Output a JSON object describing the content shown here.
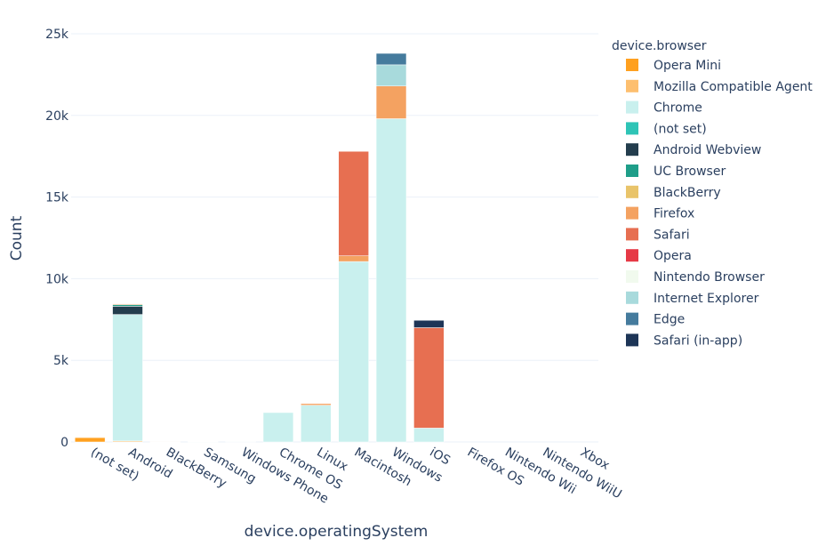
{
  "chart_data": {
    "type": "bar",
    "barmode": "stack",
    "title": "",
    "xlabel": "device.operatingSystem",
    "ylabel": "Count",
    "legend_title": "device.browser",
    "legend_position": "right",
    "grid": true,
    "ylim": [
      0,
      25000
    ],
    "yticks": [
      0,
      5000,
      10000,
      15000,
      20000,
      25000
    ],
    "ytick_labels": [
      "0",
      "5k",
      "10k",
      "15k",
      "20k",
      "25k"
    ],
    "categories": [
      "(not set)",
      "Android",
      "BlackBerry",
      "Samsung",
      "Windows Phone",
      "Chrome OS",
      "Linux",
      "Macintosh",
      "Windows",
      "iOS",
      "Firefox OS",
      "Nintendo Wii",
      "Nintendo WiiU",
      "Xbox"
    ],
    "series": [
      {
        "name": "Opera Mini",
        "color": "#FFA01F",
        "values": [
          270,
          0,
          0,
          0,
          0,
          0,
          0,
          0,
          0,
          0,
          0,
          0,
          0,
          0
        ]
      },
      {
        "name": "Mozilla Compatible Agent",
        "color": "#FDBF6F",
        "values": [
          30,
          60,
          10,
          0,
          0,
          0,
          0,
          0,
          0,
          0,
          0,
          0,
          0,
          0
        ]
      },
      {
        "name": "Chrome",
        "color": "#C9F0EE",
        "values": [
          0,
          7750,
          0,
          20,
          30,
          1800,
          2250,
          11050,
          19800,
          850,
          0,
          0,
          0,
          0
        ]
      },
      {
        "name": "(not set)",
        "color": "#2EC4B6",
        "values": [
          0,
          0,
          0,
          0,
          0,
          0,
          0,
          0,
          0,
          0,
          0,
          0,
          0,
          0
        ]
      },
      {
        "name": "Android Webview",
        "color": "#233D4D",
        "values": [
          0,
          500,
          0,
          0,
          0,
          0,
          0,
          0,
          0,
          0,
          0,
          0,
          0,
          0
        ]
      },
      {
        "name": "UC Browser",
        "color": "#1F9E89",
        "values": [
          0,
          100,
          0,
          0,
          0,
          0,
          0,
          0,
          0,
          0,
          0,
          0,
          0,
          0
        ]
      },
      {
        "name": "BlackBerry",
        "color": "#E9C46A",
        "values": [
          0,
          0,
          0,
          0,
          0,
          0,
          0,
          0,
          0,
          0,
          0,
          0,
          0,
          0
        ]
      },
      {
        "name": "Firefox",
        "color": "#F4A261",
        "values": [
          0,
          50,
          0,
          0,
          0,
          0,
          100,
          350,
          2000,
          0,
          0,
          0,
          0,
          0
        ]
      },
      {
        "name": "Safari",
        "color": "#E76F51",
        "values": [
          0,
          0,
          0,
          0,
          0,
          0,
          0,
          6400,
          0,
          6150,
          0,
          0,
          0,
          0
        ]
      },
      {
        "name": "Opera",
        "color": "#E63946",
        "values": [
          0,
          0,
          0,
          0,
          0,
          0,
          0,
          0,
          0,
          0,
          0,
          0,
          0,
          0
        ]
      },
      {
        "name": "Nintendo Browser",
        "color": "#F1FAEE",
        "values": [
          0,
          0,
          0,
          0,
          0,
          0,
          0,
          0,
          0,
          0,
          0,
          0,
          0,
          0
        ]
      },
      {
        "name": "Internet Explorer",
        "color": "#A8DADC",
        "values": [
          0,
          0,
          0,
          0,
          0,
          0,
          0,
          0,
          1300,
          0,
          0,
          0,
          0,
          0
        ]
      },
      {
        "name": "Edge",
        "color": "#457B9D",
        "values": [
          0,
          0,
          0,
          0,
          0,
          0,
          0,
          0,
          700,
          0,
          0,
          0,
          0,
          0
        ]
      },
      {
        "name": "Safari (in-app)",
        "color": "#1D3557",
        "values": [
          0,
          0,
          0,
          0,
          0,
          0,
          0,
          0,
          0,
          450,
          0,
          0,
          0,
          0
        ]
      }
    ]
  }
}
